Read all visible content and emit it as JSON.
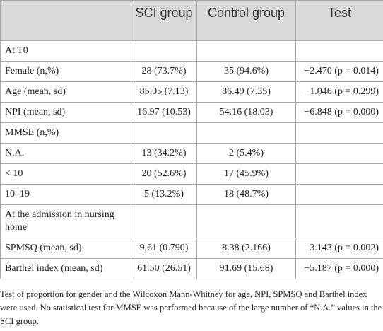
{
  "table": {
    "header": [
      "SCI group",
      "Control group",
      "Test"
    ],
    "rows": [
      {
        "label": "At T0"
      },
      {
        "label": "Female (n,%)",
        "sci": "28 (73.7%)",
        "control": "35 (94.6%)",
        "test": "−2.470 (p = 0.014)"
      },
      {
        "label": "Age (mean, sd)",
        "sci": "85.05 (7.13)",
        "control": "86.49 (7.35)",
        "test": "−1.046 (p = 0.299)"
      },
      {
        "label": "NPI (mean, sd)",
        "sci": "16.97 (10.53)",
        "control": "54.16 (18.03)",
        "test": "−6.848 (p = 0.000)"
      },
      {
        "label": "MMSE (n,%)"
      },
      {
        "label": "N.A.",
        "sci": "13 (34.2%)",
        "control": "2 (5.4%)"
      },
      {
        "label": "< 10",
        "sci": "20 (52.6%)",
        "control": "17 (45.9%)"
      },
      {
        "label": "10–19",
        "sci": "5 (13.2%)",
        "control": "18 (48.7%)"
      },
      {
        "label": "At the admission in nursing home"
      },
      {
        "label": "SPMSQ (mean, sd)",
        "sci": "9.61 (0.790)",
        "control": "8.38 (2.166)",
        "test": "3.143 (p = 0.002)"
      },
      {
        "label": "Barthel index (mean, sd)",
        "sci": "61.50 (26.51)",
        "control": "91.69 (15.68)",
        "test": "−5.187 (p = 0.000)"
      }
    ],
    "footnote": "Test of proportion for gender and the Wilcoxon Mann-Whitney for age, NPI, SPMSQ and Barthel index were used. No statistical test for MMSE was performed because of the large number of “N.A.” values in the SCI group."
  }
}
